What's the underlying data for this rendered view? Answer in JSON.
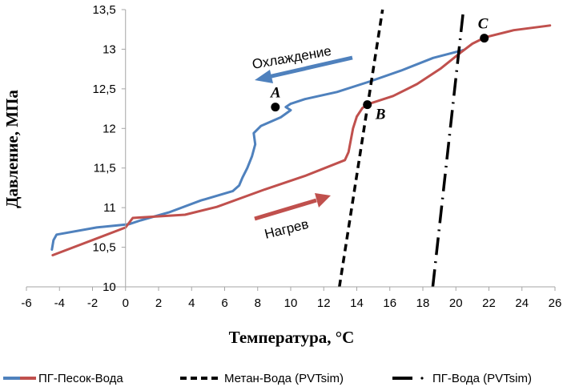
{
  "chart_data": {
    "type": "line",
    "xlabel": "Температура, °С",
    "ylabel": "Давление, МПа",
    "xlim": [
      -6,
      26
    ],
    "ylim": [
      10,
      13.5
    ],
    "xticks": [
      "-6",
      "-4",
      "-2",
      "0",
      "2",
      "4",
      "6",
      "8",
      "10",
      "12",
      "14",
      "16",
      "18",
      "20",
      "22",
      "24",
      "26"
    ],
    "xtick_values": [
      -6,
      -4,
      -2,
      0,
      2,
      4,
      6,
      8,
      10,
      12,
      14,
      16,
      18,
      20,
      22,
      24,
      26
    ],
    "yticks": [
      "10",
      "10,5",
      "11",
      "11,5",
      "12",
      "12,5",
      "13",
      "13,5"
    ],
    "ytick_values": [
      10,
      10.5,
      11,
      11.5,
      12,
      12.5,
      13,
      13.5
    ],
    "grid": false,
    "legend_position": "bottom",
    "series": [
      {
        "name": "ПГ-Песок-Вода",
        "part": "cooling",
        "color": "#4F81BD",
        "style": "solid",
        "x": [
          20.46,
          18.62,
          16.68,
          14.74,
          12.8,
          10.86,
          9.99,
          9.7,
          10.0,
          9.4,
          8.19,
          7.76,
          7.85,
          7.66,
          7.37,
          7.08,
          6.88,
          6.5,
          4.56,
          2.62,
          0.92,
          0.19,
          -1.75,
          -4.17,
          -4.36,
          -4.46
        ],
        "y": [
          12.99,
          12.89,
          12.73,
          12.59,
          12.46,
          12.37,
          12.31,
          12.27,
          12.23,
          12.14,
          12.03,
          11.94,
          11.8,
          11.65,
          11.5,
          11.38,
          11.28,
          11.21,
          11.09,
          10.94,
          10.84,
          10.79,
          10.75,
          10.66,
          10.59,
          10.47
        ]
      },
      {
        "name": "ПГ-Песок-Вода",
        "part": "heating",
        "color": "#C0504D",
        "style": "solid",
        "x": [
          -4.41,
          0,
          0.44,
          3.6,
          5.53,
          8.44,
          10.86,
          13.28,
          13.5,
          13.77,
          14.0,
          14.35,
          14.74,
          16.2,
          17.65,
          19.1,
          20.3,
          21.0,
          21.77,
          23.5,
          25.7
        ],
        "y": [
          10.4,
          10.75,
          10.87,
          10.91,
          11.01,
          11.23,
          11.4,
          11.6,
          11.7,
          12.0,
          12.15,
          12.26,
          12.31,
          12.41,
          12.56,
          12.76,
          12.96,
          13.07,
          13.15,
          13.24,
          13.3
        ]
      },
      {
        "name": "Метан-Вода (PVTsim)",
        "color": "#000000",
        "style": "dashed",
        "x": [
          12.95,
          15.56
        ],
        "y": [
          10,
          13.5
        ]
      },
      {
        "name": "ПГ-Вода (PVTsim)",
        "color": "#000000",
        "style": "dashdot",
        "x": [
          18.6,
          20.46
        ],
        "y": [
          10,
          13.5
        ]
      }
    ],
    "points": [
      {
        "label": "A",
        "x": 9.07,
        "y": 12.27
      },
      {
        "label": "B",
        "x": 14.64,
        "y": 12.3
      },
      {
        "label": "C",
        "x": 21.72,
        "y": 13.14
      }
    ],
    "annotations": {
      "cooling": {
        "text": "Охлаждение",
        "color": "#4F81BD"
      },
      "heating": {
        "text": "Нагрев",
        "color": "#C0504D"
      }
    },
    "legend": [
      "ПГ-Песок-Вода",
      "Метан-Вода (PVTsim)",
      "ПГ-Вода (PVTsim)"
    ]
  }
}
